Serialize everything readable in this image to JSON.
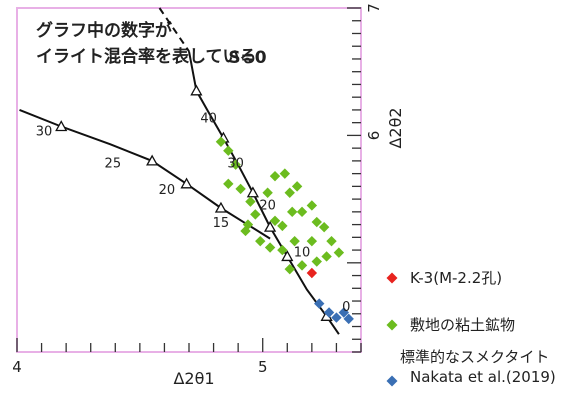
{
  "chart_data": {
    "type": "scatter",
    "title": "グラフ中の数字が\nイライト混合率を表している",
    "xlabel": "Δ2θ1",
    "ylabel": "Δ2θ2",
    "xlim": [
      4.0,
      5.4
    ],
    "ylim": [
      4.3,
      7.0
    ],
    "x_ticks": [
      "4",
      "5"
    ],
    "y_ticks": [
      "6",
      "7"
    ],
    "curve_label": "S=0",
    "curves": [
      {
        "name": "steep",
        "points": [
          [
            4.7,
            6.66
          ],
          [
            4.73,
            6.35
          ],
          [
            4.78,
            6.18
          ],
          [
            4.84,
            5.98
          ],
          [
            4.9,
            5.77
          ],
          [
            4.96,
            5.55
          ],
          [
            5.03,
            5.28
          ],
          [
            5.1,
            5.05
          ],
          [
            5.18,
            4.79
          ],
          [
            5.26,
            4.58
          ],
          [
            5.31,
            4.44
          ]
        ],
        "dashed_tail": [
          [
            4.58,
            7.0
          ],
          [
            4.7,
            6.66
          ]
        ],
        "markers": [
          [
            4.73,
            6.35
          ],
          [
            4.84,
            5.98
          ],
          [
            4.96,
            5.55
          ],
          [
            5.03,
            5.28
          ],
          [
            5.1,
            5.05
          ],
          [
            5.26,
            4.58
          ]
        ]
      },
      {
        "name": "shallow",
        "points": [
          [
            4.01,
            6.2
          ],
          [
            4.18,
            6.07
          ],
          [
            4.38,
            5.93
          ],
          [
            4.55,
            5.8
          ],
          [
            4.69,
            5.62
          ],
          [
            4.83,
            5.43
          ],
          [
            4.93,
            5.31
          ],
          [
            5.03,
            5.19
          ]
        ],
        "markers": [
          [
            4.18,
            6.07
          ],
          [
            4.55,
            5.8
          ],
          [
            4.69,
            5.62
          ],
          [
            4.83,
            5.43
          ]
        ]
      }
    ],
    "annotations": [
      {
        "text": "40",
        "x": 4.78,
        "y": 6.1
      },
      {
        "text": "30",
        "x": 4.89,
        "y": 5.75
      },
      {
        "text": "20",
        "x": 5.02,
        "y": 5.42
      },
      {
        "text": "10",
        "x": 5.16,
        "y": 5.05
      },
      {
        "text": "0",
        "x": 5.34,
        "y": 4.62
      },
      {
        "text": "30",
        "x": 4.11,
        "y": 6.0
      },
      {
        "text": "25",
        "x": 4.39,
        "y": 5.75
      },
      {
        "text": "20",
        "x": 4.61,
        "y": 5.54
      },
      {
        "text": "15",
        "x": 4.83,
        "y": 5.28
      }
    ],
    "series": [
      {
        "name": "K-3(M-2.2孔)",
        "color": "#e8231e",
        "points": [
          [
            5.2,
            4.92
          ]
        ]
      },
      {
        "name": "敷地の粘土鉱物",
        "color": "#6cbc1f",
        "points": [
          [
            4.83,
            5.95
          ],
          [
            4.86,
            5.88
          ],
          [
            4.89,
            5.77
          ],
          [
            4.86,
            5.62
          ],
          [
            4.91,
            5.58
          ],
          [
            4.95,
            5.48
          ],
          [
            5.05,
            5.68
          ],
          [
            5.09,
            5.7
          ],
          [
            5.02,
            5.55
          ],
          [
            5.11,
            5.55
          ],
          [
            5.14,
            5.6
          ],
          [
            5.12,
            5.4
          ],
          [
            5.16,
            5.4
          ],
          [
            5.2,
            5.45
          ],
          [
            4.97,
            5.38
          ],
          [
            5.05,
            5.33
          ],
          [
            5.08,
            5.29
          ],
          [
            4.93,
            5.25
          ],
          [
            4.99,
            5.17
          ],
          [
            5.03,
            5.12
          ],
          [
            5.08,
            5.1
          ],
          [
            5.13,
            5.17
          ],
          [
            5.2,
            5.17
          ],
          [
            5.25,
            5.28
          ],
          [
            5.28,
            5.17
          ],
          [
            5.31,
            5.08
          ],
          [
            5.26,
            5.05
          ],
          [
            5.22,
            5.01
          ],
          [
            5.11,
            4.95
          ],
          [
            5.16,
            4.98
          ],
          [
            4.94,
            5.3
          ],
          [
            5.22,
            5.32
          ]
        ]
      },
      {
        "name": "標準的なスメクタイト\nNakata et al.(2019)",
        "color": "#3a6fb4",
        "points": [
          [
            5.23,
            4.68
          ],
          [
            5.27,
            4.61
          ],
          [
            5.3,
            4.57
          ],
          [
            5.33,
            4.61
          ],
          [
            5.35,
            4.56
          ]
        ]
      }
    ],
    "legend_position": "right"
  },
  "colors": {
    "frame": "#e8b0e6",
    "curve": "#111111"
  }
}
